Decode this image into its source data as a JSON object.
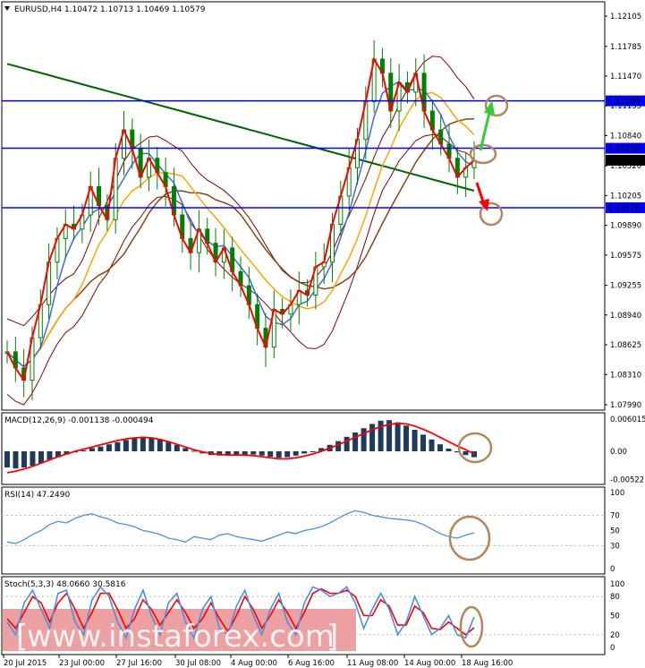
{
  "chart_data": [
    {
      "type": "candlestick",
      "title": "EURUSD,H4  1.10472 1.10713 1.10469 1.10579",
      "ylim": [
        1.0799,
        1.122
      ],
      "y_ticks": [
        "1.12105",
        "1.11785",
        "1.11470",
        "1.11155",
        "1.10840",
        "1.10520",
        "1.10205",
        "1.09890",
        "1.09575",
        "1.09255",
        "1.08940",
        "1.08625",
        "1.08310",
        "1.07990"
      ],
      "y_tick_values": [
        1.12105,
        1.11785,
        1.1147,
        1.11155,
        1.1084,
        1.1052,
        1.10205,
        1.0989,
        1.09575,
        1.09255,
        1.0894,
        1.08625,
        1.0831,
        1.0799
      ],
      "x_ticks": [
        "20 Jul 2015",
        "23 Jul 00:00",
        "27 Jul 16:00",
        "30 Jul 08:00",
        "4 Aug 00:00",
        "6 Aug 16:00",
        "11 Aug 08:00",
        "14 Aug 00:00",
        "18 Aug 16:00"
      ],
      "levels": [
        {
          "value": 1.11208,
          "label": "1.11208"
        },
        {
          "value": 1.10706,
          "label": "1.10706"
        },
        {
          "value": 1.10076,
          "label": "1.10076"
        }
      ],
      "current_price": {
        "value": 1.10579,
        "label": "1.10579"
      },
      "close_path": [
        1.0855,
        1.0838,
        1.0825,
        1.087,
        1.0905,
        1.095,
        1.0975,
        1.099,
        1.0985,
        1.1,
        1.103,
        1.101,
        1.0995,
        1.106,
        1.109,
        1.107,
        1.104,
        1.106,
        1.1045,
        1.103,
        1.1,
        1.0975,
        1.096,
        1.0985,
        1.097,
        1.095,
        1.0965,
        1.094,
        1.0925,
        1.0905,
        1.088,
        1.086,
        1.09,
        1.0895,
        1.0905,
        1.092,
        1.0915,
        1.0945,
        1.095,
        1.099,
        1.102,
        1.105,
        1.108,
        1.112,
        1.1165,
        1.115,
        1.111,
        1.114,
        1.113,
        1.115,
        1.111,
        1.109,
        1.1075,
        1.106,
        1.104,
        1.105,
        1.1058
      ],
      "indicators": [
        "Bollinger Bands",
        "Moving Averages",
        "MACD",
        "RSI",
        "Stochastic"
      ]
    },
    {
      "type": "histogram",
      "title": "MACD(12,26,9) -0.001138 -0.000494",
      "y_ticks": [
        "0.006015",
        "0.00",
        "-0.005221"
      ],
      "histogram": [
        -0.003,
        -0.0032,
        -0.003,
        -0.0027,
        -0.0022,
        -0.0016,
        -0.0011,
        -0.0006,
        -0.0002,
        0.0002,
        0.0006,
        0.0009,
        0.0013,
        0.0017,
        0.0021,
        0.0025,
        0.0027,
        0.0026,
        0.0023,
        0.0018,
        0.0012,
        0.0006,
        0.0001,
        -0.0004,
        -0.0007,
        -0.0008,
        -0.0008,
        -0.0007,
        -0.0006,
        -0.0006,
        -0.0008,
        -0.001,
        -0.0012,
        -0.0011,
        -0.0008,
        -0.0004,
        0.0,
        0.0006,
        0.0012,
        0.0019,
        0.0027,
        0.0035,
        0.0043,
        0.0051,
        0.0057,
        0.0058,
        0.0054,
        0.0048,
        0.004,
        0.0031,
        0.0022,
        0.0013,
        0.0005,
        -0.0002,
        -0.0007,
        -0.0011
      ],
      "signal": [
        -0.004,
        -0.0037,
        -0.0033,
        -0.0028,
        -0.0022,
        -0.0016,
        -0.001,
        -0.0005,
        0.0,
        0.0004,
        0.0008,
        0.0012,
        0.0016,
        0.002,
        0.0023,
        0.0025,
        0.0026,
        0.0025,
        0.0022,
        0.0018,
        0.0013,
        0.0008,
        0.0003,
        -0.0001,
        -0.0004,
        -0.0006,
        -0.0007,
        -0.0007,
        -0.0007,
        -0.0008,
        -0.001,
        -0.0012,
        -0.0014,
        -0.0014,
        -0.0012,
        -0.0009,
        -0.0005,
        0.0,
        0.0006,
        0.0012,
        0.0019,
        0.0026,
        0.0033,
        0.004,
        0.0046,
        0.005,
        0.0052,
        0.0051,
        0.0047,
        0.0041,
        0.0034,
        0.0026,
        0.0018,
        0.001,
        0.0003,
        -0.0005
      ]
    },
    {
      "type": "line",
      "title": "RSI(14) 47.2490",
      "y_ticks": [
        "100",
        "70",
        "50",
        "30",
        "0"
      ],
      "ylim": [
        0,
        100
      ],
      "values": [
        35,
        33,
        38,
        45,
        50,
        58,
        62,
        60,
        66,
        70,
        72,
        68,
        65,
        60,
        58,
        55,
        50,
        48,
        45,
        40,
        38,
        35,
        42,
        40,
        38,
        44,
        46,
        42,
        40,
        38,
        36,
        40,
        44,
        48,
        46,
        50,
        52,
        55,
        60,
        66,
        72,
        76,
        74,
        70,
        68,
        66,
        65,
        64,
        62,
        58,
        52,
        46,
        42,
        40,
        44,
        47
      ]
    },
    {
      "type": "line",
      "title": "Stoch(5,3,3) 48.0660 30.5816",
      "y_ticks": [
        "100",
        "80",
        "50",
        "20",
        "0"
      ],
      "ylim": [
        0,
        100
      ],
      "main": [
        40,
        20,
        70,
        90,
        60,
        30,
        85,
        90,
        40,
        20,
        75,
        95,
        80,
        40,
        15,
        60,
        90,
        50,
        20,
        70,
        85,
        40,
        15,
        60,
        80,
        30,
        20,
        65,
        90,
        50,
        20,
        60,
        85,
        40,
        20,
        70,
        95,
        90,
        80,
        85,
        95,
        70,
        30,
        60,
        85,
        60,
        20,
        40,
        80,
        50,
        20,
        30,
        50,
        20,
        15,
        48
      ],
      "signal": [
        45,
        30,
        55,
        80,
        70,
        40,
        70,
        85,
        60,
        30,
        55,
        85,
        85,
        60,
        30,
        45,
        75,
        60,
        35,
        55,
        75,
        55,
        30,
        45,
        70,
        45,
        25,
        50,
        80,
        60,
        30,
        50,
        75,
        55,
        30,
        55,
        85,
        92,
        85,
        85,
        90,
        80,
        50,
        50,
        75,
        65,
        35,
        35,
        65,
        55,
        30,
        28,
        40,
        30,
        20,
        31
      ]
    }
  ],
  "watermark": "www.instaforex.com",
  "colors": {
    "price_up": "#008000",
    "price_line": "#ff0000",
    "bollinger": "#8b0000",
    "ma_fast": "#4169e1",
    "ma_mid": "#ffa500",
    "ma_slow": "#8b4513",
    "ma_long": "#006400",
    "level": "#0000ff",
    "macd_hist": "#1f3a5f",
    "macd_signal": "#ff0000",
    "rsi": "#4a90e2",
    "stoch_main": "#4a90e2",
    "stoch_signal": "#ff0000",
    "annotation_circle": "#b5865a",
    "arrow_up": "#32cd32",
    "arrow_down": "#ff0000",
    "watermark_bg": "#e8888a"
  }
}
